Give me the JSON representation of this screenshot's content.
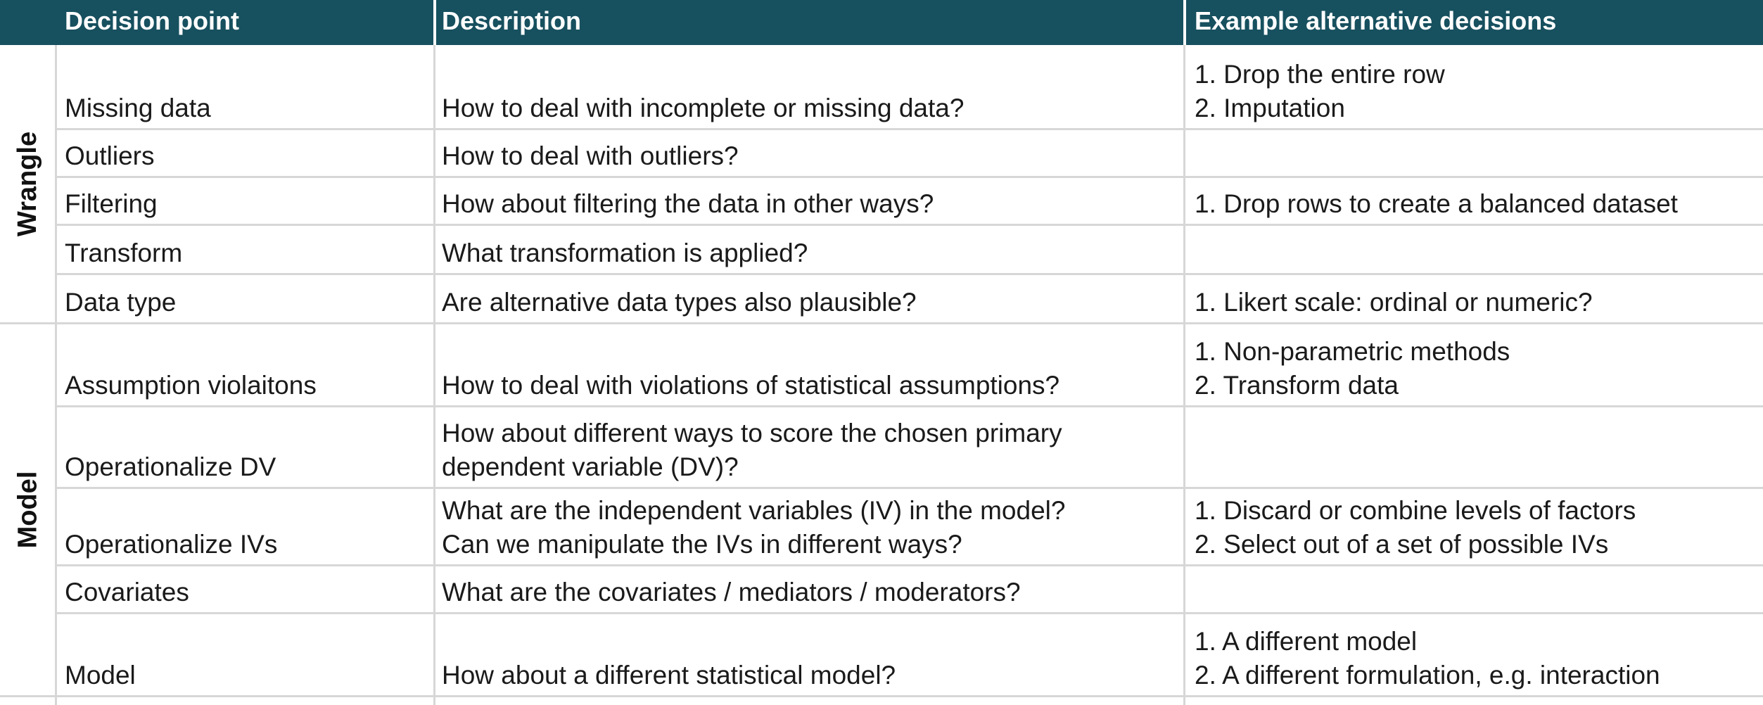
{
  "header": {
    "col_decision": "Decision point",
    "col_description": "Description",
    "col_examples": "Example alternative decisions"
  },
  "groups": [
    {
      "label": "Wrangle",
      "rows": [
        {
          "decision": "Missing data",
          "description": [
            "How to deal with incomplete or missing data?"
          ],
          "examples": [
            "1. Drop the entire row",
            "2. Imputation"
          ]
        },
        {
          "decision": "Outliers",
          "description": [
            "How to deal with outliers?"
          ],
          "examples": []
        },
        {
          "decision": "Filtering",
          "description": [
            "How about filtering the data in other ways?"
          ],
          "examples": [
            "1. Drop rows to create a balanced dataset"
          ]
        },
        {
          "decision": "Transform",
          "description": [
            "What transformation is applied?"
          ],
          "examples": []
        },
        {
          "decision": "Data type",
          "description": [
            "Are alternative data types also plausible?"
          ],
          "examples": [
            "1. Likert scale: ordinal or numeric?"
          ]
        }
      ]
    },
    {
      "label": "Model",
      "rows": [
        {
          "decision": "Assumption violaitons",
          "description": [
            "How to deal with violations of statistical assumptions?"
          ],
          "examples": [
            "1. Non-parametric methods",
            "2. Transform data"
          ]
        },
        {
          "decision": "Operationalize DV",
          "description": [
            "How about different ways to score the chosen primary",
            "dependent variable (DV)?"
          ],
          "examples": []
        },
        {
          "decision": "Operationalize IVs",
          "description": [
            "What are the independent variables (IV) in the model?",
            "Can we manipulate the IVs in different ways?"
          ],
          "examples": [
            "1. Discard or combine levels of factors",
            "2. Select out of a set of possible IVs"
          ]
        },
        {
          "decision": "Covariates",
          "description": [
            "What are the covariates / mediators / moderators?"
          ],
          "examples": []
        },
        {
          "decision": "Model",
          "description": [
            "How about a different statistical model?"
          ],
          "examples": [
            "1. A different model",
            "2. A different formulation, e.g. interaction"
          ]
        }
      ]
    }
  ]
}
